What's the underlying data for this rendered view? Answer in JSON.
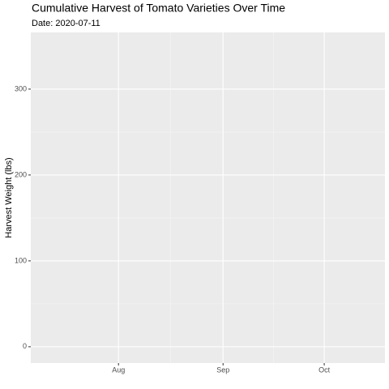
{
  "chart_data": {
    "type": "line",
    "title": "Cumulative Harvest of Tomato Varieties Over Time",
    "subtitle": "Date: 2020-07-11",
    "y_label": "Harvest Weight (lbs)",
    "xlim": [
      "2020-07-06",
      "2020-10-19"
    ],
    "xticks": [
      {
        "value": "2020-08-01",
        "label": "Aug"
      },
      {
        "value": "2020-09-01",
        "label": "Sep"
      },
      {
        "value": "2020-10-01",
        "label": "Oct"
      }
    ],
    "ylim": [
      -19,
      366
    ],
    "yticks": [
      0,
      100,
      200,
      300
    ],
    "grid": true
  }
}
